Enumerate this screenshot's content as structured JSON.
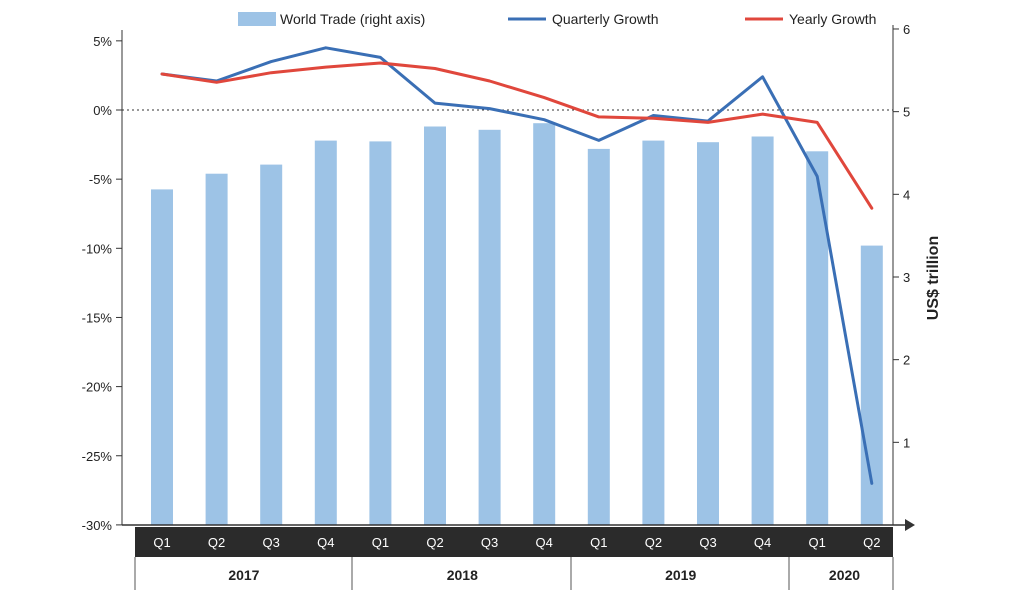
{
  "chart_data": {
    "type": "bar+line",
    "categories": [
      "Q1",
      "Q2",
      "Q3",
      "Q4",
      "Q1",
      "Q2",
      "Q3",
      "Q4",
      "Q1",
      "Q2",
      "Q3",
      "Q4",
      "Q1",
      "Q2"
    ],
    "years": [
      {
        "label": "2017",
        "start": 0,
        "end": 3
      },
      {
        "label": "2018",
        "start": 4,
        "end": 7
      },
      {
        "label": "2019",
        "start": 8,
        "end": 11
      },
      {
        "label": "2020",
        "start": 12,
        "end": 13
      }
    ],
    "bars": {
      "name": "World Trade (right axis)",
      "axis": "right",
      "color": "#9dc3e6",
      "values": [
        4.06,
        4.25,
        4.36,
        4.65,
        4.64,
        4.82,
        4.78,
        4.86,
        4.55,
        4.65,
        4.63,
        4.7,
        4.52,
        3.38
      ]
    },
    "series": [
      {
        "name": "Quarterly Growth",
        "axis": "left",
        "color": "#3a6fb5",
        "values": [
          2.6,
          2.1,
          3.5,
          4.5,
          3.8,
          0.5,
          0.1,
          -0.7,
          -2.2,
          -0.4,
          -0.8,
          2.4,
          -4.8,
          -27.0
        ]
      },
      {
        "name": "Yearly Growth",
        "axis": "left",
        "color": "#e0473c",
        "values": [
          2.6,
          2.0,
          2.7,
          3.1,
          3.4,
          3.0,
          2.1,
          0.9,
          -0.5,
          -0.6,
          -0.9,
          -0.3,
          -0.9,
          -7.1
        ]
      }
    ],
    "left_axis": {
      "ylim": [
        -30,
        6
      ],
      "ticks": [
        "5%",
        "0%",
        "-5%",
        "-10%",
        "-15%",
        "-20%",
        "-25%",
        "-30%"
      ],
      "tick_values": [
        5,
        0,
        -5,
        -10,
        -15,
        -20,
        -25,
        -30
      ]
    },
    "right_axis": {
      "label": "US$ trillion",
      "ylim": [
        0,
        6
      ],
      "ticks": [
        "6",
        "5",
        "4",
        "3",
        "2",
        "1"
      ],
      "tick_values": [
        6,
        5,
        4,
        3,
        2,
        1
      ]
    },
    "zero_line": "dotted",
    "grid": false,
    "legend": "top"
  }
}
